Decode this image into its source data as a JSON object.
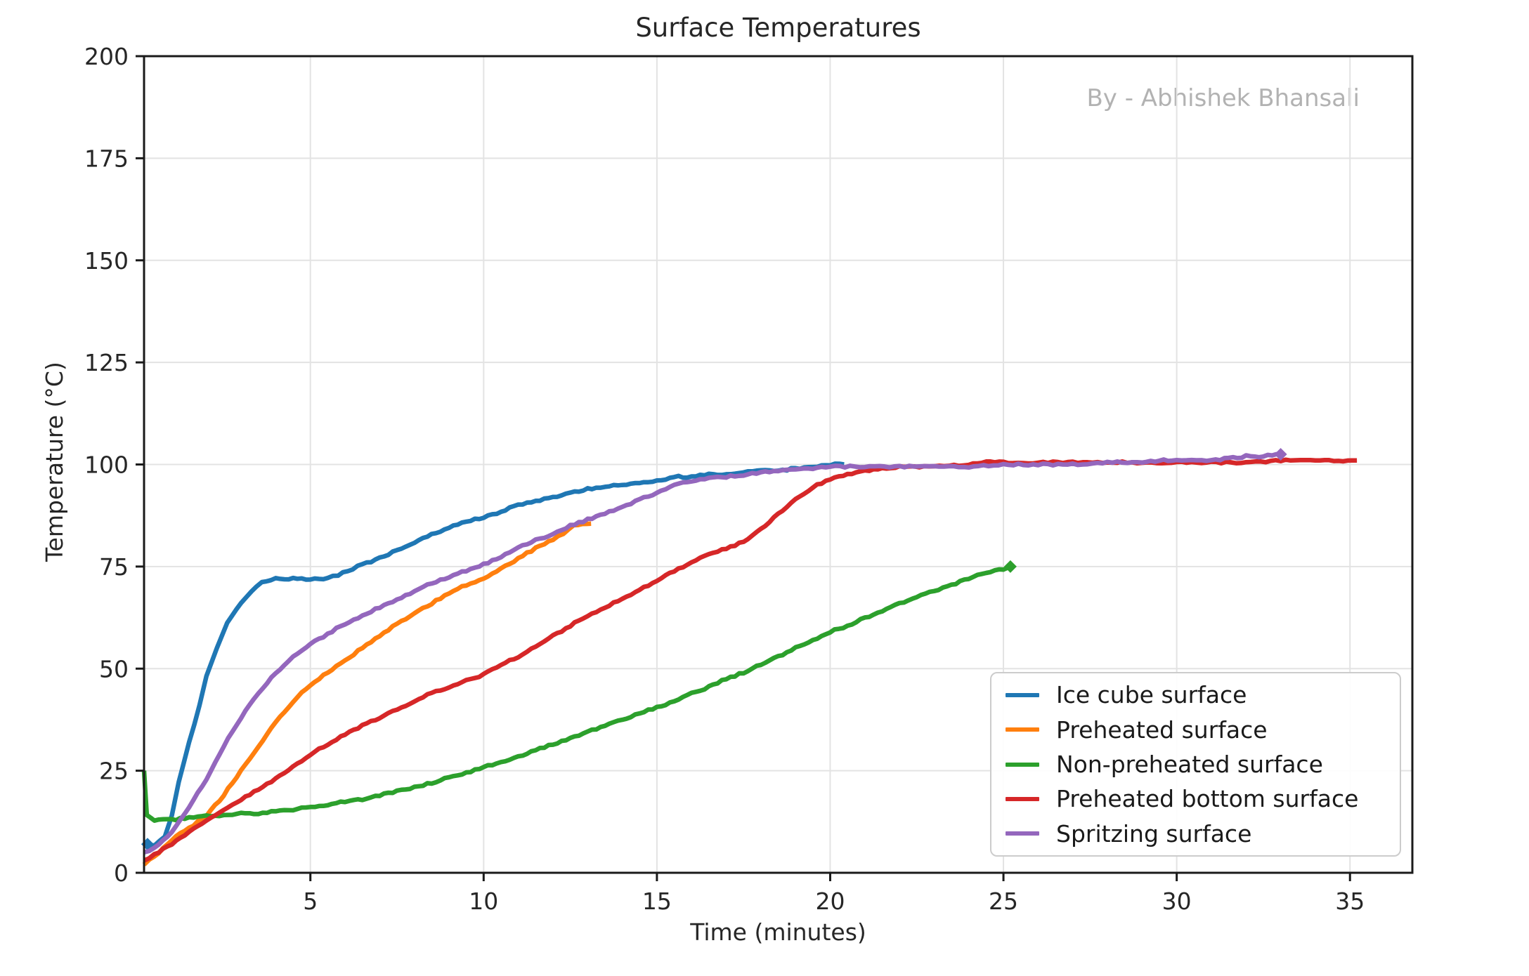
{
  "chart_data": {
    "type": "line",
    "title": "Surface Temperatures",
    "watermark": "By - Abhishek Bhansali",
    "xlabel": "Time (minutes)",
    "ylabel": "Temperature (°C)",
    "xlim": [
      0.2,
      36.8
    ],
    "ylim": [
      0,
      200
    ],
    "x_ticks": [
      5,
      10,
      15,
      20,
      25,
      30,
      35
    ],
    "y_ticks": [
      0,
      25,
      50,
      75,
      100,
      125,
      150,
      175,
      200
    ],
    "grid": true,
    "legend_position": "lower right",
    "colors": {
      "blue": "#1f77b4",
      "orange": "#ff7f0e",
      "green": "#2ca02c",
      "red": "#d62728",
      "purple": "#9467bd",
      "grid": "#e3e3e3",
      "spine": "#1a1a1a",
      "watermark": "#b2b2b2"
    },
    "series": [
      {
        "name": "Ice cube surface",
        "color": "#1f77b4",
        "marker": "start",
        "points": [
          [
            0.3,
            7
          ],
          [
            0.5,
            6.5
          ],
          [
            0.8,
            9
          ],
          [
            1.0,
            14
          ],
          [
            1.2,
            22
          ],
          [
            1.5,
            32
          ],
          [
            1.8,
            41
          ],
          [
            2.0,
            48
          ],
          [
            2.3,
            55
          ],
          [
            2.6,
            61
          ],
          [
            3.0,
            66
          ],
          [
            3.3,
            69
          ],
          [
            3.6,
            71
          ],
          [
            4.0,
            72
          ],
          [
            4.5,
            72
          ],
          [
            5.0,
            72
          ],
          [
            5.5,
            72
          ],
          [
            5.8,
            73
          ],
          [
            6.5,
            75.5
          ],
          [
            7.0,
            77
          ],
          [
            7.5,
            79
          ],
          [
            8.0,
            81
          ],
          [
            8.5,
            83
          ],
          [
            9.0,
            84.5
          ],
          [
            9.5,
            86
          ],
          [
            10.0,
            87
          ],
          [
            10.5,
            88.5
          ],
          [
            11.0,
            90
          ],
          [
            11.5,
            91
          ],
          [
            12.0,
            92
          ],
          [
            12.5,
            93
          ],
          [
            13.0,
            94
          ],
          [
            13.5,
            94.5
          ],
          [
            14.0,
            95
          ],
          [
            14.5,
            95.5
          ],
          [
            15.0,
            96
          ],
          [
            15.5,
            97
          ],
          [
            16.0,
            97
          ],
          [
            16.5,
            97.5
          ],
          [
            17.0,
            97.5
          ],
          [
            17.5,
            98
          ],
          [
            18.0,
            98.5
          ],
          [
            18.5,
            98.5
          ],
          [
            19.0,
            99
          ],
          [
            19.5,
            99.5
          ],
          [
            20.0,
            100
          ],
          [
            20.4,
            100
          ]
        ]
      },
      {
        "name": "Preheated surface",
        "color": "#ff7f0e",
        "marker": "none",
        "points": [
          [
            0.2,
            2
          ],
          [
            0.5,
            4
          ],
          [
            1.0,
            8
          ],
          [
            1.5,
            11
          ],
          [
            2.0,
            14
          ],
          [
            2.5,
            19
          ],
          [
            3.0,
            25
          ],
          [
            3.5,
            31
          ],
          [
            4.0,
            37
          ],
          [
            4.5,
            42
          ],
          [
            5.0,
            46
          ],
          [
            5.5,
            49
          ],
          [
            6.0,
            52
          ],
          [
            6.5,
            55
          ],
          [
            7.0,
            58
          ],
          [
            7.5,
            61
          ],
          [
            8.0,
            63.5
          ],
          [
            8.5,
            66
          ],
          [
            9.0,
            68.5
          ],
          [
            9.5,
            70.5
          ],
          [
            10.0,
            72
          ],
          [
            10.5,
            74.5
          ],
          [
            11.0,
            77
          ],
          [
            11.5,
            79.5
          ],
          [
            12.0,
            81.5
          ],
          [
            12.3,
            83
          ],
          [
            12.6,
            85
          ],
          [
            13.1,
            85.5
          ]
        ]
      },
      {
        "name": "Non-preheated surface",
        "color": "#2ca02c",
        "marker": "end",
        "points": [
          [
            0.2,
            25
          ],
          [
            0.28,
            14
          ],
          [
            0.5,
            13
          ],
          [
            1.0,
            13
          ],
          [
            1.5,
            13.5
          ],
          [
            2.0,
            14
          ],
          [
            2.5,
            14
          ],
          [
            3.0,
            14.5
          ],
          [
            3.5,
            14.5
          ],
          [
            4.0,
            15
          ],
          [
            4.5,
            15.5
          ],
          [
            5.0,
            16
          ],
          [
            5.5,
            16.5
          ],
          [
            6.0,
            17.5
          ],
          [
            6.5,
            18
          ],
          [
            7.0,
            19
          ],
          [
            7.5,
            20
          ],
          [
            8.0,
            21
          ],
          [
            8.5,
            22
          ],
          [
            9.0,
            23.5
          ],
          [
            9.5,
            24.5
          ],
          [
            10.0,
            26
          ],
          [
            10.5,
            27
          ],
          [
            11.0,
            28.5
          ],
          [
            11.5,
            30
          ],
          [
            12.0,
            31.5
          ],
          [
            12.5,
            33
          ],
          [
            13.0,
            34.5
          ],
          [
            13.5,
            36
          ],
          [
            14.0,
            37.5
          ],
          [
            14.5,
            39
          ],
          [
            15.0,
            40.5
          ],
          [
            15.5,
            42
          ],
          [
            16.0,
            44
          ],
          [
            16.5,
            45.5
          ],
          [
            17.0,
            47.5
          ],
          [
            17.5,
            49
          ],
          [
            18.0,
            51
          ],
          [
            18.5,
            53
          ],
          [
            19.0,
            55
          ],
          [
            19.5,
            57
          ],
          [
            20.0,
            59
          ],
          [
            20.5,
            60.5
          ],
          [
            21.0,
            62.5
          ],
          [
            21.5,
            64
          ],
          [
            22.0,
            66
          ],
          [
            22.5,
            67.5
          ],
          [
            23.0,
            69
          ],
          [
            23.5,
            70.5
          ],
          [
            24.0,
            72
          ],
          [
            24.5,
            73.5
          ],
          [
            25.0,
            74.5
          ],
          [
            25.2,
            75
          ]
        ]
      },
      {
        "name": "Preheated bottom surface",
        "color": "#d62728",
        "marker": "none",
        "points": [
          [
            0.2,
            3
          ],
          [
            0.5,
            4.5
          ],
          [
            1.0,
            7
          ],
          [
            1.5,
            10
          ],
          [
            2.0,
            13
          ],
          [
            2.5,
            15.5
          ],
          [
            3.0,
            18
          ],
          [
            3.5,
            20.5
          ],
          [
            4.0,
            23
          ],
          [
            4.5,
            26
          ],
          [
            5.0,
            29
          ],
          [
            5.5,
            31.5
          ],
          [
            6.0,
            34
          ],
          [
            6.5,
            36
          ],
          [
            7.0,
            38
          ],
          [
            7.5,
            40
          ],
          [
            8.0,
            42
          ],
          [
            8.5,
            44
          ],
          [
            9.0,
            45.5
          ],
          [
            9.5,
            47
          ],
          [
            10.0,
            48.5
          ],
          [
            10.5,
            51
          ],
          [
            11.0,
            53
          ],
          [
            11.5,
            55.5
          ],
          [
            12.0,
            58
          ],
          [
            12.5,
            60.5
          ],
          [
            13.0,
            63
          ],
          [
            13.5,
            65
          ],
          [
            14.0,
            67
          ],
          [
            14.5,
            69.5
          ],
          [
            15.0,
            71.5
          ],
          [
            15.5,
            74
          ],
          [
            16.0,
            76
          ],
          [
            16.5,
            78
          ],
          [
            17.0,
            79.5
          ],
          [
            17.5,
            81
          ],
          [
            18.0,
            84
          ],
          [
            18.5,
            88
          ],
          [
            19.0,
            91.5
          ],
          [
            19.5,
            94.5
          ],
          [
            20.0,
            96.5
          ],
          [
            20.5,
            97.5
          ],
          [
            21.0,
            98.5
          ],
          [
            21.5,
            99
          ],
          [
            22.0,
            99.5
          ],
          [
            23.0,
            99.5
          ],
          [
            24.0,
            100
          ],
          [
            24.5,
            100.5
          ],
          [
            25.0,
            100.5
          ],
          [
            26.0,
            100.5
          ],
          [
            27.0,
            100.5
          ],
          [
            28.0,
            100.5
          ],
          [
            29.0,
            100.5
          ],
          [
            30.0,
            100.5
          ],
          [
            31.0,
            100.5
          ],
          [
            32.0,
            100.5
          ],
          [
            33.0,
            101
          ],
          [
            34.0,
            101
          ],
          [
            35.2,
            101
          ]
        ]
      },
      {
        "name": "Spritzing surface",
        "color": "#9467bd",
        "marker": "end",
        "points": [
          [
            0.2,
            5
          ],
          [
            0.5,
            6
          ],
          [
            1.0,
            10
          ],
          [
            1.5,
            16
          ],
          [
            2.0,
            23
          ],
          [
            2.5,
            31
          ],
          [
            3.0,
            38
          ],
          [
            3.5,
            44
          ],
          [
            4.0,
            49
          ],
          [
            4.5,
            53
          ],
          [
            5.0,
            56
          ],
          [
            5.5,
            58.5
          ],
          [
            6.0,
            61
          ],
          [
            6.5,
            63
          ],
          [
            7.0,
            65
          ],
          [
            7.5,
            67
          ],
          [
            8.0,
            69
          ],
          [
            8.5,
            71
          ],
          [
            9.0,
            72.5
          ],
          [
            9.5,
            74
          ],
          [
            10.0,
            75.5
          ],
          [
            10.5,
            77.5
          ],
          [
            11.0,
            79.5
          ],
          [
            11.5,
            81.5
          ],
          [
            12.0,
            83
          ],
          [
            12.5,
            85
          ],
          [
            13.0,
            86.5
          ],
          [
            13.5,
            88
          ],
          [
            14.0,
            89.5
          ],
          [
            14.5,
            91.5
          ],
          [
            15.0,
            93
          ],
          [
            15.5,
            95
          ],
          [
            16.0,
            96
          ],
          [
            16.5,
            96.5
          ],
          [
            17.0,
            97
          ],
          [
            17.5,
            97.5
          ],
          [
            18.0,
            98
          ],
          [
            18.5,
            98.5
          ],
          [
            19.0,
            99
          ],
          [
            19.5,
            99
          ],
          [
            20.0,
            99.5
          ],
          [
            21.0,
            99.5
          ],
          [
            22.0,
            99.5
          ],
          [
            23.0,
            99.5
          ],
          [
            24.0,
            99.5
          ],
          [
            25.0,
            100
          ],
          [
            26.0,
            100
          ],
          [
            27.0,
            100
          ],
          [
            28.0,
            100.5
          ],
          [
            29.0,
            100.5
          ],
          [
            29.5,
            101
          ],
          [
            30.0,
            101
          ],
          [
            31.0,
            101
          ],
          [
            31.5,
            101.5
          ],
          [
            32.0,
            102
          ],
          [
            32.5,
            102
          ],
          [
            33.0,
            102.5
          ]
        ]
      }
    ]
  }
}
